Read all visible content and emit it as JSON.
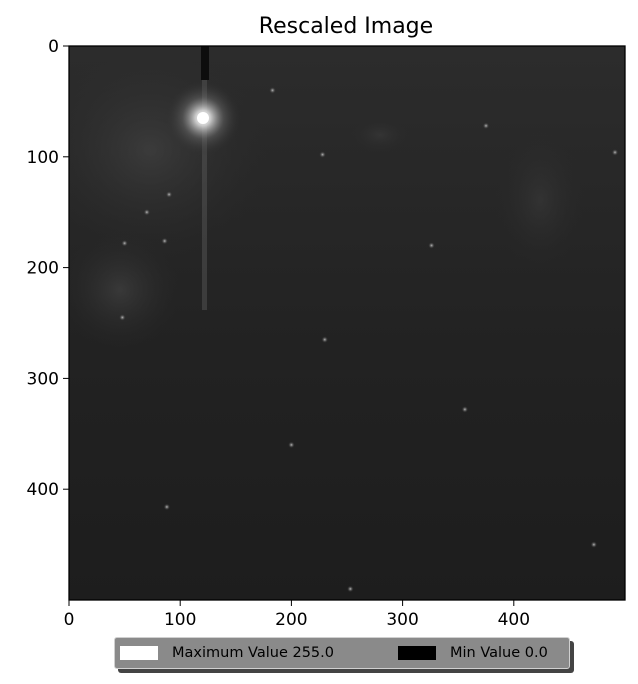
{
  "title": "Rescaled Image",
  "axes": {
    "x_ticks": [
      "0",
      "100",
      "200",
      "300",
      "400"
    ],
    "y_ticks": [
      "0",
      "100",
      "200",
      "300",
      "400"
    ],
    "x_range": [
      0,
      500
    ],
    "y_range": [
      0,
      500
    ],
    "y_inverted": true
  },
  "image": {
    "colormap": "gray",
    "background_level": 30,
    "bright_star": {
      "x": 120,
      "y": 65,
      "level": 255
    },
    "colors": {
      "background": "#1f1f1f",
      "frame": "#000000"
    }
  },
  "legend": {
    "items": [
      {
        "label": "Maximum Value 255.0",
        "color": "#ffffff"
      },
      {
        "label": "Min Value 0.0",
        "color": "#000000"
      }
    ]
  }
}
